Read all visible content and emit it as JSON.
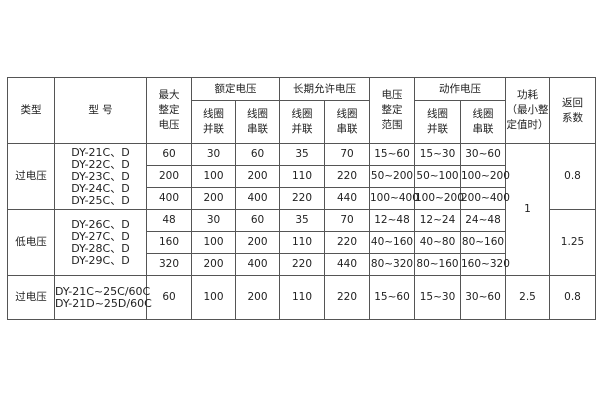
{
  "headers": {
    "type": "类型",
    "model": "型 号",
    "max_setting": [
      "最大",
      "整定",
      "电压"
    ],
    "rated_voltage": "额定电压",
    "long_term_voltage": "长期允许电压",
    "range": [
      "电压",
      "整定",
      "范围"
    ],
    "action_voltage": "动作电压",
    "power": [
      "功耗",
      "（最小整",
      "定值时）"
    ],
    "return_coef": [
      "返回",
      "系数"
    ],
    "parallel": [
      "线圈",
      "并联"
    ],
    "series": [
      "线圈",
      "串联"
    ]
  },
  "groups": [
    {
      "type": "过电压",
      "models": [
        "DY-21C、D",
        "DY-22C、D",
        "DY-23C、D",
        "DY-24C、D",
        "DY-25C、D"
      ],
      "return_coef": "0.8",
      "rows": [
        [
          "60",
          "30",
          "60",
          "35",
          "70",
          "15~60",
          "15~30",
          "30~60"
        ],
        [
          "200",
          "100",
          "200",
          "110",
          "220",
          "50~200",
          "50~100",
          "100~200"
        ],
        [
          "400",
          "200",
          "400",
          "220",
          "440",
          "100~400",
          "100~200",
          "200~400"
        ]
      ]
    },
    {
      "type": "低电压",
      "models": [
        "DY-26C、D",
        "DY-27C、D",
        "DY-28C、D",
        "DY-29C、D"
      ],
      "return_coef": "1.25",
      "rows": [
        [
          "48",
          "30",
          "60",
          "35",
          "70",
          "12~48",
          "12~24",
          "24~48"
        ],
        [
          "160",
          "100",
          "200",
          "110",
          "220",
          "40~160",
          "40~80",
          "80~160"
        ],
        [
          "320",
          "200",
          "400",
          "220",
          "440",
          "80~320",
          "80~160",
          "160~320"
        ]
      ]
    },
    {
      "type": "过电压",
      "models": [
        "DY-21C~25C/60C",
        "DY-21D~25D/60C"
      ],
      "return_coef": "0.8",
      "power": "2.5",
      "rows": [
        [
          "60",
          "100",
          "200",
          "110",
          "220",
          "15~60",
          "15~30",
          "30~60"
        ]
      ]
    }
  ],
  "power_shared": "1"
}
